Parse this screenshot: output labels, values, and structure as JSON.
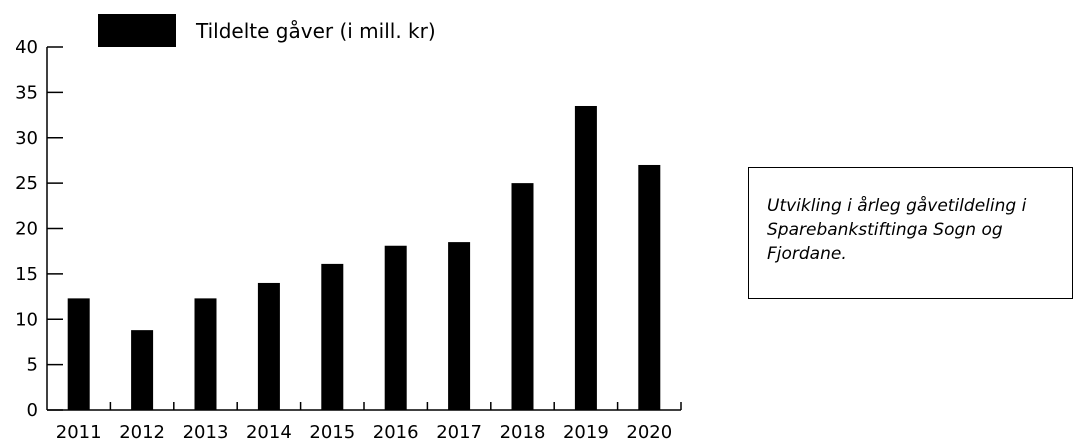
{
  "chart_data": {
    "type": "bar",
    "categories": [
      "2011",
      "2012",
      "2013",
      "2014",
      "2015",
      "2016",
      "2017",
      "2018",
      "2019",
      "2020"
    ],
    "series": [
      {
        "name": "Tildelte gåver (i mill. kr)",
        "values": [
          12.3,
          8.8,
          12.3,
          14.0,
          16.1,
          18.1,
          18.5,
          25.0,
          33.5,
          27.0
        ],
        "color": "#000000"
      }
    ],
    "ylim": [
      0,
      40
    ],
    "yticks": [
      0,
      5,
      10,
      15,
      20,
      25,
      30,
      35,
      40
    ],
    "legend_position": "top-left",
    "grid": false
  },
  "caption": {
    "text": "Utvikling i årleg gåvetildeling i Sparebankstiftinga Sogn og Fjordane."
  }
}
